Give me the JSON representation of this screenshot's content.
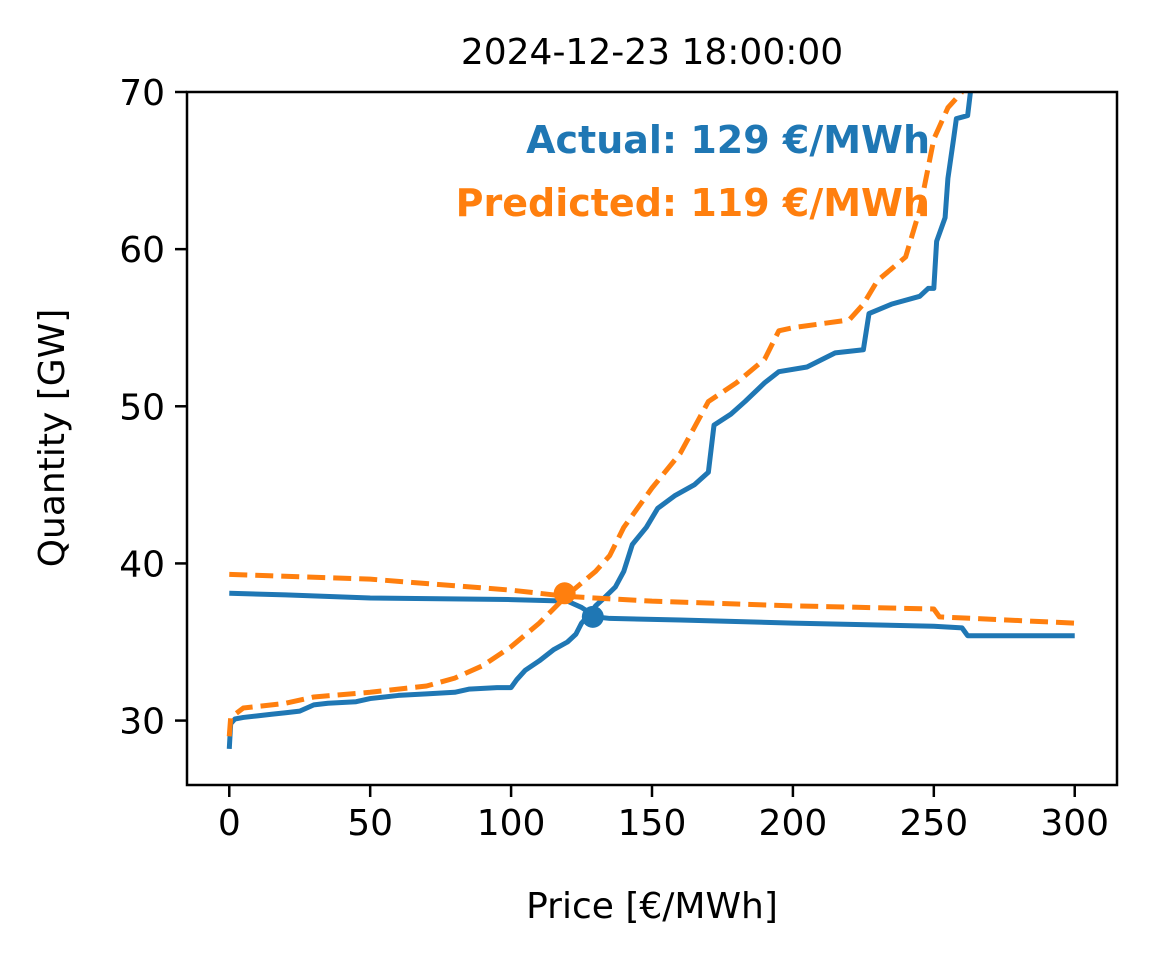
{
  "chart_data": {
    "type": "line",
    "title": "2024-12-23 18:00:00",
    "x_label": "Price [€/MWh]",
    "y_label": "Quantity [GW]",
    "xlim": [
      -15,
      315
    ],
    "xticks": [
      0,
      50,
      100,
      150,
      200,
      250,
      300
    ],
    "ylim": [
      25.9,
      70
    ],
    "yticks": [
      30,
      40,
      50,
      60,
      70
    ],
    "series": [
      {
        "color": "#1f77b4",
        "dashed": false,
        "x": [
          0,
          0.5,
          2,
          5,
          10,
          15,
          20,
          25,
          30,
          35,
          45,
          50,
          60,
          70,
          80,
          85,
          95,
          100,
          102,
          105,
          110,
          115,
          120,
          123,
          125,
          128,
          130,
          133,
          137,
          140,
          143,
          148,
          152,
          158,
          165,
          170,
          172,
          178,
          183,
          190,
          195,
          205,
          215,
          225,
          227,
          235,
          245,
          248,
          250,
          251,
          254,
          255,
          257,
          258,
          262,
          263
        ],
        "values": [
          28.2,
          29.8,
          30.1,
          30.2,
          30.3,
          30.4,
          30.5,
          30.6,
          31,
          31.1,
          31.2,
          31.4,
          31.6,
          31.7,
          31.8,
          32,
          32.1,
          32.1,
          32.6,
          33.2,
          33.8,
          34.5,
          35,
          35.5,
          36.2,
          36.8,
          37.3,
          37.8,
          38.5,
          39.5,
          41.2,
          42.3,
          43.5,
          44.3,
          45,
          45.8,
          48.8,
          49.5,
          50.3,
          51.5,
          52.2,
          52.5,
          53.4,
          53.6,
          55.9,
          56.5,
          57,
          57.5,
          57.5,
          60.5,
          62,
          64.5,
          67,
          68.3,
          68.5,
          70
        ]
      },
      {
        "color": "#1f77b4",
        "dashed": false,
        "x": [
          0,
          20,
          50,
          100,
          120,
          125,
          130,
          135,
          160,
          200,
          250,
          260,
          262,
          300
        ],
        "values": [
          38.1,
          38,
          37.8,
          37.7,
          37.6,
          37.2,
          36.6,
          36.5,
          36.4,
          36.2,
          36,
          35.9,
          35.4,
          35.4
        ]
      },
      {
        "color": "#ff7f0e",
        "dashed": true,
        "x": [
          0,
          0.5,
          5,
          20,
          30,
          50,
          70,
          80,
          90,
          100,
          110,
          120,
          130,
          135,
          140,
          150,
          160,
          170,
          180,
          190,
          195,
          200,
          220,
          225,
          230,
          240,
          245,
          250,
          255,
          260
        ],
        "values": [
          29,
          30.2,
          30.8,
          31.1,
          31.5,
          31.8,
          32.2,
          32.7,
          33.5,
          34.7,
          36.2,
          38,
          39.5,
          40.5,
          42.3,
          44.8,
          47,
          50.3,
          51.5,
          53,
          54.8,
          55,
          55.5,
          56.5,
          58,
          59.5,
          62.5,
          67,
          69,
          70
        ]
      },
      {
        "color": "#ff7f0e",
        "dashed": true,
        "x": [
          0,
          50,
          100,
          120,
          150,
          200,
          250,
          252,
          300
        ],
        "values": [
          39.3,
          39,
          38.3,
          37.9,
          37.6,
          37.3,
          37.1,
          36.6,
          36.2
        ]
      }
    ],
    "markers": [
      {
        "x": 129,
        "y": 36.6,
        "color": "#1f77b4"
      },
      {
        "x": 119,
        "y": 38.1,
        "color": "#ff7f0e"
      }
    ],
    "annotations": [
      {
        "text": "Actual: 129 €/MWh",
        "color": "#1f77b4"
      },
      {
        "text": "Predicted: 119 €/MWh",
        "color": "#ff7f0e"
      }
    ]
  }
}
